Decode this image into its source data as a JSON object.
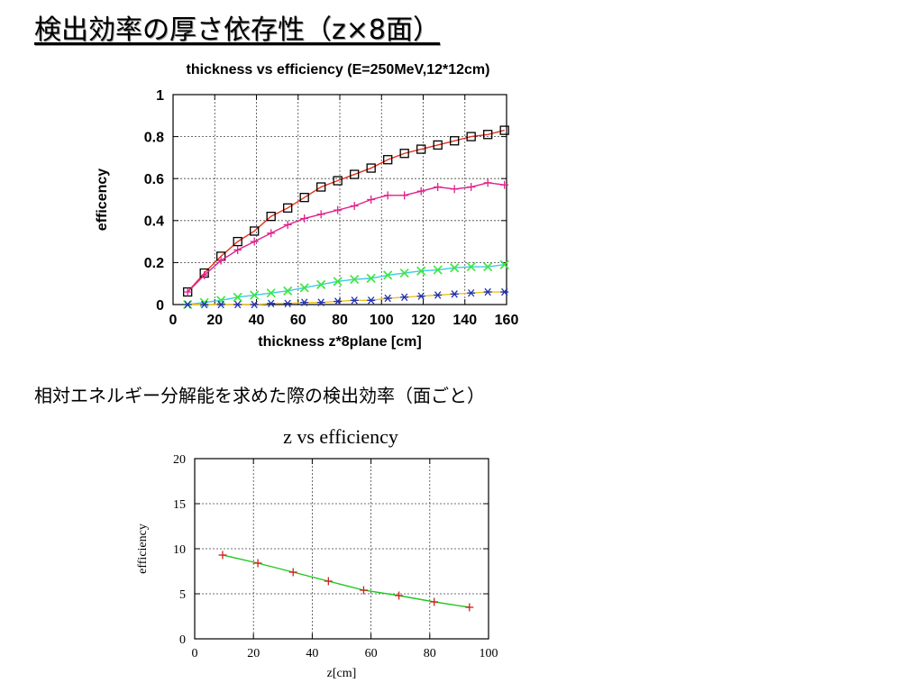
{
  "slide": {
    "title": "検出効率の厚さ依存性（z×8面）",
    "subheading": "相対エネルギー分解能を求めた際の検出効率（面ごと）"
  },
  "chart_data": [
    {
      "type": "line",
      "title": "thickness vs efficiency (E=250MeV,12*12cm)",
      "xlabel": "thickness z*8plane [cm]",
      "ylabel": "efficency",
      "xlim": [
        0,
        160
      ],
      "ylim": [
        0,
        1
      ],
      "xticks": [
        "0",
        "20",
        "40",
        "60",
        "80",
        "100",
        "120",
        "140",
        "160"
      ],
      "yticks": [
        "0",
        "0.2",
        "0.4",
        "0.6",
        "0.8",
        "1"
      ],
      "grid": true,
      "x": [
        7,
        15,
        23,
        31,
        39,
        47,
        55,
        63,
        71,
        79,
        87,
        95,
        103,
        111,
        119,
        127,
        135,
        143,
        151,
        159
      ],
      "series": [
        {
          "marker": "square",
          "marker_color": "#000000",
          "line_color": "#e8301a",
          "values": [
            0.06,
            0.15,
            0.23,
            0.3,
            0.35,
            0.42,
            0.46,
            0.51,
            0.56,
            0.59,
            0.62,
            0.65,
            0.69,
            0.72,
            0.74,
            0.76,
            0.78,
            0.8,
            0.81,
            0.83
          ]
        },
        {
          "marker": "plus",
          "marker_color": "#e0208a",
          "line_color": "#e0208a",
          "values": [
            0.06,
            0.14,
            0.21,
            0.26,
            0.3,
            0.34,
            0.38,
            0.41,
            0.43,
            0.45,
            0.47,
            0.5,
            0.52,
            0.52,
            0.54,
            0.56,
            0.55,
            0.56,
            0.58,
            0.57
          ]
        },
        {
          "marker": "x",
          "marker_color": "#3de83d",
          "line_color": "#40c8e8",
          "values": [
            0.0,
            0.01,
            0.02,
            0.035,
            0.045,
            0.055,
            0.065,
            0.08,
            0.095,
            0.11,
            0.12,
            0.125,
            0.14,
            0.15,
            0.16,
            0.165,
            0.175,
            0.18,
            0.18,
            0.19
          ]
        },
        {
          "marker": "star",
          "marker_color": "#2030b0",
          "line_color": "#f0c020",
          "values": [
            0.0,
            0.0,
            0.0,
            0.0,
            0.0,
            0.005,
            0.005,
            0.01,
            0.01,
            0.015,
            0.02,
            0.02,
            0.03,
            0.035,
            0.04,
            0.045,
            0.05,
            0.055,
            0.06,
            0.06
          ]
        }
      ]
    },
    {
      "type": "line",
      "title": "z vs efficiency",
      "xlabel": "z[cm]",
      "ylabel": "efficiency",
      "xlim": [
        0,
        100
      ],
      "ylim": [
        0,
        20
      ],
      "xticks": [
        "0",
        "20",
        "40",
        "60",
        "80",
        "100"
      ],
      "yticks": [
        "0",
        "5",
        "10",
        "15",
        "20"
      ],
      "grid": true,
      "series": [
        {
          "marker": "plus",
          "marker_color": "#d02020",
          "line_color": "#20c820",
          "x": [
            9.5,
            21.5,
            33.5,
            45.5,
            57.5,
            69.5,
            81.5,
            93.5
          ],
          "values": [
            9.3,
            8.4,
            7.4,
            6.4,
            5.4,
            4.8,
            4.1,
            3.5
          ]
        }
      ]
    }
  ]
}
